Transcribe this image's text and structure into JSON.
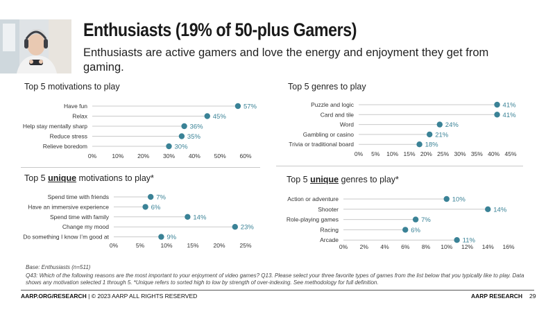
{
  "title": "Enthusiasts (19% of 50-plus Gamers)",
  "subtitle": "Enthusiasts are active gamers and love the energy and enjoyment they get from gaming.",
  "sections": {
    "motivations": "Top 5 motivations to play",
    "genres": "Top 5 genres to play",
    "unique_motivations": {
      "prefix": "Top 5 ",
      "emph": "unique",
      "suffix": " motivations to play*"
    },
    "unique_genres": {
      "prefix": "Top 5 ",
      "emph": "unique",
      "suffix": " genres to play*"
    }
  },
  "notes": {
    "base": "Base: Enthusiasts (n=511)",
    "question": "Q43: Which of the following reasons are the most important to your enjoyment of video games?  Q13. Please select your three favorite types of games from the list below that you typically like to play. Data shows any motivation selected 1 through 5. *Unique refers to sorted high to low by strength of over-indexing. See methodology for full definition."
  },
  "footer": {
    "left_bold": "AARP.ORG/RESEARCH",
    "left_rest": " | © 2023 AARP ALL RIGHTS RESERVED",
    "right": "AARP RESEARCH",
    "page": "29"
  },
  "colors": {
    "dot": "#3a8296",
    "label": "#3a8296",
    "line": "#c9c9c9"
  },
  "chart_data": [
    {
      "type": "dot",
      "categories": [
        "Have fun",
        "Relax",
        "Help stay mentally sharp",
        "Reduce stress",
        "Relieve boredom"
      ],
      "values": [
        57,
        45,
        36,
        35,
        30
      ],
      "value_labels": [
        "57%",
        "45%",
        "36%",
        "35%",
        "30%"
      ],
      "xlim": [
        0,
        60
      ],
      "xticks": [
        "0%",
        "10%",
        "20%",
        "30%",
        "40%",
        "50%",
        "60%"
      ]
    },
    {
      "type": "dot",
      "categories": [
        "Puzzle and logic",
        "Card and tile",
        "Word",
        "Gambling or casino",
        "Trivia or traditional board"
      ],
      "values": [
        41,
        41,
        24,
        21,
        18
      ],
      "value_labels": [
        "41%",
        "41%",
        "24%",
        "21%",
        "18%"
      ],
      "xlim": [
        0,
        45
      ],
      "xticks": [
        "0%",
        "5%",
        "10%",
        "15%",
        "20%",
        "25%",
        "30%",
        "35%",
        "40%",
        "45%"
      ]
    },
    {
      "type": "dot",
      "categories": [
        "Spend time with friends",
        "Have an immersive experience",
        "Spend time with family",
        "Change my mood",
        "Do something I know I’m good at"
      ],
      "values": [
        7,
        6,
        14,
        23,
        9
      ],
      "value_labels": [
        "7%",
        "6%",
        "14%",
        "23%",
        "9%"
      ],
      "xlim": [
        0,
        25
      ],
      "xticks": [
        "0%",
        "5%",
        "10%",
        "15%",
        "20%",
        "25%"
      ]
    },
    {
      "type": "dot",
      "categories": [
        "Action or adventure",
        "Shooter",
        "Role-playing games",
        "Racing",
        "Arcade"
      ],
      "values": [
        10,
        14,
        7,
        6,
        11
      ],
      "value_labels": [
        "10%",
        "14%",
        "7%",
        "6%",
        "11%"
      ],
      "xlim": [
        0,
        16
      ],
      "xticks": [
        "0%",
        "2%",
        "4%",
        "6%",
        "8%",
        "10%",
        "12%",
        "14%",
        "16%"
      ]
    }
  ]
}
